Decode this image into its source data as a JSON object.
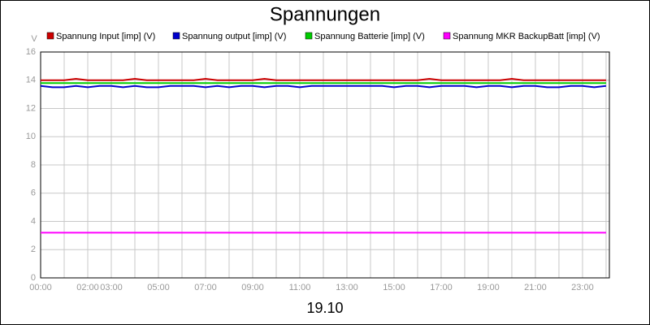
{
  "chart_data": {
    "type": "line",
    "title": "Spannungen",
    "xlabel": "19.10",
    "ylabel": "V",
    "x": [
      0,
      0.5,
      1,
      1.5,
      2,
      2.5,
      3,
      3.5,
      4,
      4.5,
      5,
      5.5,
      6,
      6.5,
      7,
      7.5,
      8,
      8.5,
      9,
      9.5,
      10,
      10.5,
      11,
      11.5,
      12,
      12.5,
      13,
      13.5,
      14,
      14.5,
      15,
      15.5,
      16,
      16.5,
      17,
      17.5,
      18,
      18.5,
      19,
      19.5,
      20,
      20.5,
      21,
      21.5,
      22,
      22.5,
      23,
      23.5,
      24
    ],
    "series": [
      {
        "name": "Spannung Input [imp] (V)",
        "color": "#cc0000",
        "values": [
          14.0,
          14.0,
          14.0,
          14.1,
          14.0,
          14.0,
          14.0,
          14.0,
          14.1,
          14.0,
          14.0,
          14.0,
          14.0,
          14.0,
          14.1,
          14.0,
          14.0,
          14.0,
          14.0,
          14.1,
          14.0,
          14.0,
          14.0,
          14.0,
          14.0,
          14.0,
          14.0,
          14.0,
          14.0,
          14.0,
          14.0,
          14.0,
          14.0,
          14.1,
          14.0,
          14.0,
          14.0,
          14.0,
          14.0,
          14.0,
          14.1,
          14.0,
          14.0,
          14.0,
          14.0,
          14.0,
          14.0,
          14.0,
          14.0
        ]
      },
      {
        "name": "Spannung output [imp] (V)",
        "color": "#0000cc",
        "values": [
          13.6,
          13.5,
          13.5,
          13.6,
          13.5,
          13.6,
          13.6,
          13.5,
          13.6,
          13.5,
          13.5,
          13.6,
          13.6,
          13.6,
          13.5,
          13.6,
          13.5,
          13.6,
          13.6,
          13.5,
          13.6,
          13.6,
          13.5,
          13.6,
          13.6,
          13.6,
          13.6,
          13.6,
          13.6,
          13.6,
          13.5,
          13.6,
          13.6,
          13.5,
          13.6,
          13.6,
          13.6,
          13.5,
          13.6,
          13.6,
          13.5,
          13.6,
          13.6,
          13.5,
          13.5,
          13.6,
          13.6,
          13.5,
          13.6
        ]
      },
      {
        "name": "Spannung Batterie [imp] (V)",
        "color": "#00cc00",
        "values": [
          13.8,
          13.8,
          13.8,
          13.8,
          13.8,
          13.8,
          13.8,
          13.8,
          13.8,
          13.8,
          13.8,
          13.8,
          13.8,
          13.8,
          13.8,
          13.8,
          13.8,
          13.8,
          13.8,
          13.8,
          13.8,
          13.8,
          13.8,
          13.8,
          13.8,
          13.8,
          13.8,
          13.8,
          13.8,
          13.8,
          13.8,
          13.8,
          13.8,
          13.8,
          13.8,
          13.8,
          13.8,
          13.8,
          13.8,
          13.8,
          13.8,
          13.8,
          13.8,
          13.8,
          13.8,
          13.8,
          13.8,
          13.8,
          13.8
        ]
      },
      {
        "name": "Spannung MKR BackupBatt [imp] (V)",
        "color": "#ff00ff",
        "values": [
          3.2,
          3.2,
          3.2,
          3.2,
          3.2,
          3.2,
          3.2,
          3.2,
          3.2,
          3.2,
          3.2,
          3.2,
          3.2,
          3.2,
          3.2,
          3.2,
          3.2,
          3.2,
          3.2,
          3.2,
          3.2,
          3.2,
          3.2,
          3.2,
          3.2,
          3.2,
          3.2,
          3.2,
          3.2,
          3.2,
          3.2,
          3.2,
          3.2,
          3.2,
          3.2,
          3.2,
          3.2,
          3.2,
          3.2,
          3.2,
          3.2,
          3.2,
          3.2,
          3.2,
          3.2,
          3.2,
          3.2,
          3.2,
          3.2
        ]
      }
    ],
    "xlim": [
      0,
      24.14
    ],
    "xticks": [
      {
        "value": 0,
        "label": "00:00"
      },
      {
        "value": 1,
        "label": null
      },
      {
        "value": 2,
        "label": "02:00"
      },
      {
        "value": 3,
        "label": "03:00"
      },
      {
        "value": 4,
        "label": null
      },
      {
        "value": 5,
        "label": "05:00"
      },
      {
        "value": 6,
        "label": null
      },
      {
        "value": 7,
        "label": "07:00"
      },
      {
        "value": 8,
        "label": null
      },
      {
        "value": 9,
        "label": "09:00"
      },
      {
        "value": 10,
        "label": null
      },
      {
        "value": 11,
        "label": "11:00"
      },
      {
        "value": 12,
        "label": null
      },
      {
        "value": 13,
        "label": "13:00"
      },
      {
        "value": 14,
        "label": null
      },
      {
        "value": 15,
        "label": "15:00"
      },
      {
        "value": 16,
        "label": null
      },
      {
        "value": 17,
        "label": "17:00"
      },
      {
        "value": 18,
        "label": null
      },
      {
        "value": 19,
        "label": "19:00"
      },
      {
        "value": 20,
        "label": null
      },
      {
        "value": 21,
        "label": "21:00"
      },
      {
        "value": 22,
        "label": null
      },
      {
        "value": 23,
        "label": "23:00"
      },
      {
        "value": 24,
        "label": null
      }
    ],
    "ylim": [
      0,
      16
    ],
    "yticks": [
      0,
      2,
      4,
      6,
      8,
      10,
      12,
      14,
      16
    ],
    "grid": true
  }
}
